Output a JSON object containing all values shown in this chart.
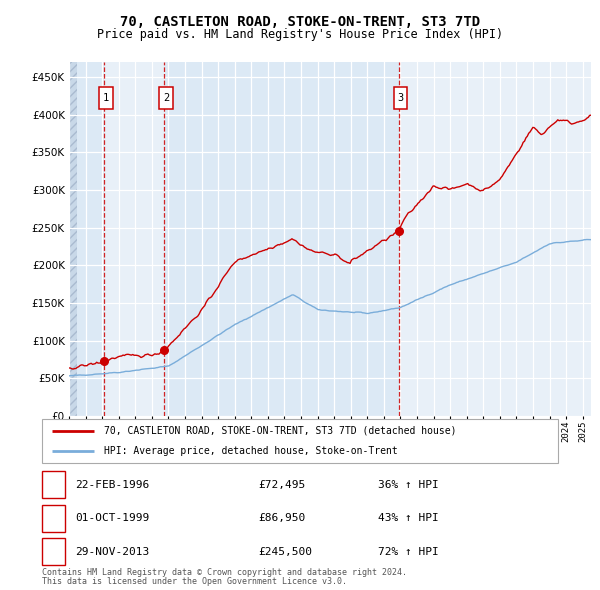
{
  "title": "70, CASTLETON ROAD, STOKE-ON-TRENT, ST3 7TD",
  "subtitle": "Price paid vs. HM Land Registry's House Price Index (HPI)",
  "transactions": [
    {
      "num": 1,
      "date": "22-FEB-1996",
      "price": 72495,
      "pct": "36%",
      "year_x": 1996.13
    },
    {
      "num": 2,
      "date": "01-OCT-1999",
      "price": 86950,
      "pct": "43%",
      "year_x": 1999.75
    },
    {
      "num": 3,
      "date": "29-NOV-2013",
      "price": 245500,
      "pct": "72%",
      "year_x": 2013.91
    }
  ],
  "legend_property": "70, CASTLETON ROAD, STOKE-ON-TRENT, ST3 7TD (detached house)",
  "legend_hpi": "HPI: Average price, detached house, Stoke-on-Trent",
  "footer1": "Contains HM Land Registry data © Crown copyright and database right 2024.",
  "footer2": "This data is licensed under the Open Government Licence v3.0.",
  "ylim": [
    0,
    470000
  ],
  "xlim_start": 1994.0,
  "xlim_end": 2025.5,
  "property_color": "#cc0000",
  "hpi_color": "#7aadda",
  "background_color": "#dce9f5",
  "grid_color": "#ffffff",
  "dashed_line_color": "#cc0000",
  "transaction_box_color": "#cc0000"
}
